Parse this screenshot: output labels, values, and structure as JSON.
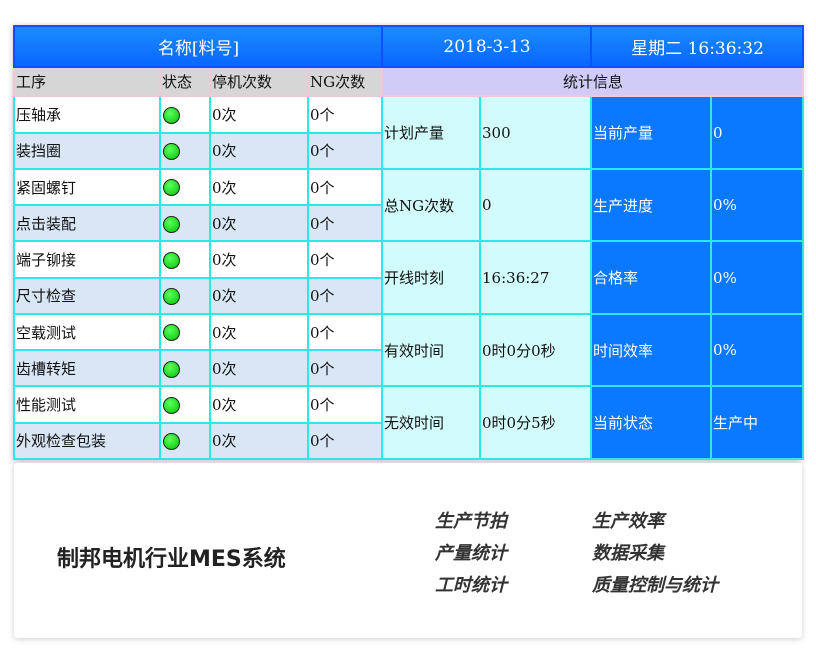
{
  "header": {
    "name": "名称[料号]",
    "date": "2018-3-13",
    "weekday_time": "星期二 16:36:32"
  },
  "columns": [
    "工序",
    "状态",
    "停机次数",
    "NG次数"
  ],
  "stats_title": "统计信息",
  "status_color": "#00c400",
  "processes": [
    {
      "name": "压轴承",
      "stops": "0次",
      "ng": "0个"
    },
    {
      "name": "装挡圈",
      "stops": "0次",
      "ng": "0个"
    },
    {
      "name": "紧固螺钉",
      "stops": "0次",
      "ng": "0个"
    },
    {
      "name": "点击装配",
      "stops": "0次",
      "ng": "0个"
    },
    {
      "name": "端子铆接",
      "stops": "0次",
      "ng": "0个"
    },
    {
      "name": "尺寸检查",
      "stops": "0次",
      "ng": "0个"
    },
    {
      "name": "空载测试",
      "stops": "0次",
      "ng": "0个"
    },
    {
      "name": "齿槽转矩",
      "stops": "0次",
      "ng": "0个"
    },
    {
      "name": "性能测试",
      "stops": "0次",
      "ng": "0个"
    },
    {
      "name": "外观检查包装",
      "stops": "0次",
      "ng": "0个"
    }
  ],
  "stats": [
    {
      "l1": "计划产量",
      "v1": "300",
      "l2": "当前产量",
      "v2": "0"
    },
    {
      "l1": "总NG次数",
      "v1": "0",
      "l2": "生产进度",
      "v2": "0%"
    },
    {
      "l1": "开线时刻",
      "v1": "16:36:27",
      "l2": "合格率",
      "v2": "0%"
    },
    {
      "l1": "有效时间",
      "v1": "0时0分0秒",
      "l2": "时间效率",
      "v2": "0%"
    },
    {
      "l1": "无效时间",
      "v1": "0时0分5秒",
      "l2": "当前状态",
      "v2": "生产中"
    }
  ],
  "card": {
    "title": "制邦电机行业MES系统",
    "features": [
      "生产节拍",
      "生产效率",
      "产量统计",
      "数据采集",
      "工时统计",
      "质量控制与统计"
    ]
  }
}
